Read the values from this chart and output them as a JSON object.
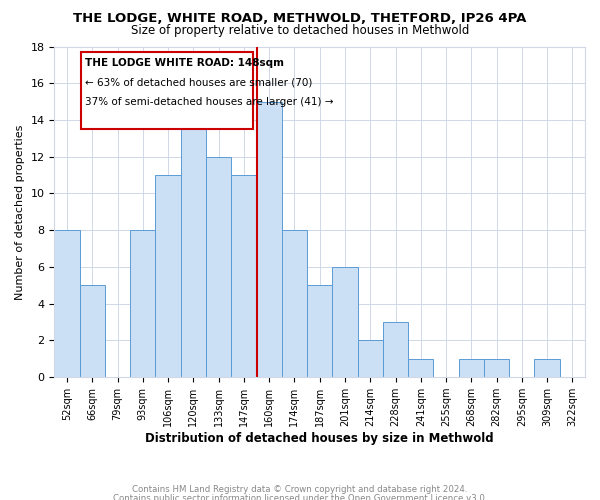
{
  "title": "THE LODGE, WHITE ROAD, METHWOLD, THETFORD, IP26 4PA",
  "subtitle": "Size of property relative to detached houses in Methwold",
  "xlabel": "Distribution of detached houses by size in Methwold",
  "ylabel": "Number of detached properties",
  "bins": [
    "52sqm",
    "66sqm",
    "79sqm",
    "93sqm",
    "106sqm",
    "120sqm",
    "133sqm",
    "147sqm",
    "160sqm",
    "174sqm",
    "187sqm",
    "201sqm",
    "214sqm",
    "228sqm",
    "241sqm",
    "255sqm",
    "268sqm",
    "282sqm",
    "295sqm",
    "309sqm",
    "322sqm"
  ],
  "values": [
    8,
    5,
    0,
    8,
    11,
    14,
    12,
    11,
    15,
    8,
    5,
    6,
    2,
    3,
    1,
    0,
    1,
    1,
    0,
    1,
    0
  ],
  "bar_color": "#cce0f5",
  "bar_edge_color": "#5b9bd5",
  "vline_x": 7.5,
  "vline_color": "#cc0000",
  "ylim": [
    0,
    18
  ],
  "yticks": [
    0,
    2,
    4,
    6,
    8,
    10,
    12,
    14,
    16,
    18
  ],
  "ann_line1": "THE LODGE WHITE ROAD: 148sqm",
  "ann_line2": "← 63% of detached houses are smaller (70)",
  "ann_line3": "37% of semi-detached houses are larger (41) →",
  "footer1": "Contains HM Land Registry data © Crown copyright and database right 2024.",
  "footer2": "Contains public sector information licensed under the Open Government Licence v3.0.",
  "bg_color": "#ffffff",
  "grid_color": "#d0d8e8",
  "title_fontsize": 9.5,
  "subtitle_fontsize": 8.5
}
